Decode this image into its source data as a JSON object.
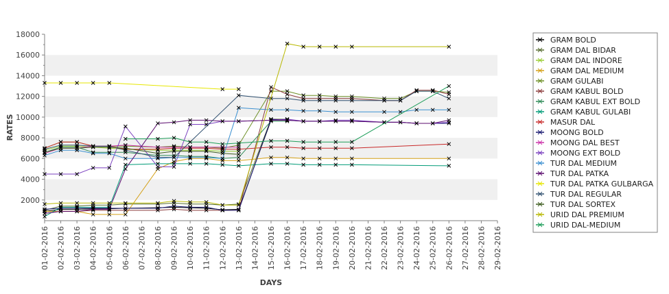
{
  "chart_data": {
    "type": "line",
    "xlabel": "DAYS",
    "ylabel": "RATES",
    "ylim": [
      0,
      18000
    ],
    "yticks": [
      2000,
      4000,
      6000,
      8000,
      10000,
      12000,
      14000,
      16000,
      18000
    ],
    "grid": "horizontal bands",
    "legend_position": "right",
    "x": [
      "01-02-2016",
      "02-02-2016",
      "03-02-2016",
      "04-02-2016",
      "05-02-2016",
      "06-02-2016",
      "07-02-2016",
      "08-02-2016",
      "09-02-2016",
      "10-02-2016",
      "11-02-2016",
      "12-02-2016",
      "13-02-2016",
      "14-02-2016",
      "15-02-2016",
      "16-02-2016",
      "17-02-2016",
      "18-02-2016",
      "19-02-2016",
      "20-02-2016",
      "21-02-2016",
      "22-02-2016",
      "23-02-2016",
      "24-02-2016",
      "25-02-2016",
      "26-02-2016",
      "27-02-2016",
      "28-02-2016",
      "29-02-2016"
    ],
    "series": [
      {
        "name": "GRAM BOLD",
        "color": "#000000",
        "values": [
          900,
          1100,
          1100,
          1150,
          1150,
          1200,
          null,
          1250,
          1300,
          1250,
          1200,
          1050,
          1100,
          null,
          9700,
          9700,
          null,
          null,
          null,
          null,
          null,
          null,
          null,
          null,
          null,
          null,
          null,
          null,
          null
        ]
      },
      {
        "name": "GRAM DAL BIDAR",
        "color": "#556b2f",
        "values": [
          1000,
          1400,
          1400,
          1500,
          1500,
          1600,
          null,
          1600,
          1700,
          1600,
          1600,
          1500,
          1600,
          null,
          9800,
          9800,
          null,
          null,
          null,
          null,
          null,
          null,
          null,
          null,
          null,
          null,
          null,
          null,
          null
        ]
      },
      {
        "name": "GRAM DAL INDORE",
        "color": "#9acd32",
        "values": [
          6800,
          7200,
          7200,
          7100,
          7000,
          6900,
          null,
          6800,
          6800,
          6800,
          6800,
          6700,
          6700,
          null,
          null,
          null,
          null,
          null,
          null,
          null,
          null,
          null,
          null,
          null,
          null,
          null,
          null,
          null,
          null
        ]
      },
      {
        "name": "GRAM DAL MEDIUM",
        "color": "#d4a017",
        "values": [
          900,
          900,
          900,
          600,
          600,
          600,
          null,
          5000,
          5700,
          6000,
          6000,
          5800,
          5800,
          null,
          6100,
          6100,
          6000,
          6000,
          6000,
          6000,
          null,
          null,
          null,
          null,
          null,
          6000,
          null,
          null,
          null
        ]
      },
      {
        "name": "GRAM GULABI",
        "color": "#6b8e23",
        "values": [
          7000,
          7600,
          7600,
          7200,
          7200,
          7200,
          null,
          7100,
          7200,
          7100,
          7100,
          7000,
          7300,
          null,
          12500,
          12500,
          12100,
          12100,
          12000,
          12000,
          null,
          11800,
          11800,
          12500,
          12500,
          12400,
          null,
          null,
          null
        ]
      },
      {
        "name": "GRAM KABUL BOLD",
        "color": "#8b3a3a",
        "values": [
          700,
          900,
          900,
          1000,
          1000,
          1000,
          null,
          1000,
          1100,
          1000,
          1000,
          1000,
          1000,
          null,
          12900,
          12200,
          11800,
          11800,
          11800,
          11800,
          null,
          11600,
          11600,
          12600,
          12600,
          12200,
          null,
          null,
          null
        ]
      },
      {
        "name": "GRAM KABUL EXT BOLD",
        "color": "#2e8b57",
        "values": [
          6600,
          7100,
          7100,
          6600,
          6600,
          6600,
          null,
          6300,
          6300,
          6200,
          6200,
          6000,
          6100,
          null,
          9600,
          9600,
          null,
          null,
          null,
          null,
          null,
          null,
          null,
          null,
          null,
          null,
          null,
          null,
          null
        ]
      },
      {
        "name": "GRAM KABUL GULABI",
        "color": "#009b77",
        "values": [
          400,
          1300,
          1300,
          1300,
          1300,
          5400,
          null,
          5500,
          5500,
          5500,
          5500,
          5400,
          5300,
          null,
          5500,
          5500,
          5400,
          5400,
          5400,
          5400,
          null,
          null,
          null,
          null,
          null,
          5300,
          null,
          null,
          null
        ]
      },
      {
        "name": "MASUR DAL",
        "color": "#c82828",
        "values": [
          7000,
          7600,
          7600,
          7200,
          7200,
          6900,
          null,
          6900,
          7000,
          7000,
          7000,
          6900,
          6900,
          null,
          7100,
          7100,
          7000,
          7000,
          7000,
          7000,
          null,
          null,
          null,
          null,
          null,
          7400,
          null,
          null,
          null
        ]
      },
      {
        "name": "MOONG BOLD",
        "color": "#191970",
        "values": [
          1100,
          1200,
          1200,
          1200,
          1200,
          1200,
          null,
          1200,
          1400,
          1300,
          1300,
          1000,
          1000,
          null,
          9800,
          9700,
          9600,
          9600,
          9600,
          9600,
          null,
          9500,
          9500,
          9400,
          9400,
          9400,
          null,
          null,
          null
        ]
      },
      {
        "name": "MOONG DAL BEST",
        "color": "#cc33aa",
        "values": [
          6500,
          7000,
          7000,
          7200,
          7200,
          7300,
          null,
          7100,
          7100,
          7100,
          7100,
          7100,
          7100,
          null,
          null,
          null,
          null,
          null,
          null,
          null,
          null,
          null,
          null,
          null,
          null,
          null,
          null,
          null,
          null
        ]
      },
      {
        "name": "MOONG EXT BOLD",
        "color": "#7a3fbf",
        "values": [
          4500,
          4500,
          4500,
          5100,
          5100,
          9100,
          null,
          5200,
          5200,
          9300,
          9300,
          9600,
          9600,
          null,
          9700,
          9800,
          9600,
          9600,
          9700,
          9700,
          null,
          9500,
          9500,
          9400,
          9400,
          9500,
          null,
          null,
          null
        ]
      },
      {
        "name": "TUR DAL MEDIUM",
        "color": "#3a8fd0",
        "values": [
          6300,
          6800,
          6800,
          6500,
          6500,
          6000,
          null,
          6000,
          6100,
          6100,
          6100,
          6000,
          10900,
          null,
          10700,
          10700,
          10600,
          10600,
          10500,
          10500,
          null,
          10500,
          10500,
          10700,
          10700,
          10700,
          null,
          null,
          null
        ]
      },
      {
        "name": "TUR DAL PATKA",
        "color": "#5a0a6e",
        "values": [
          700,
          900,
          900,
          1100,
          1100,
          5000,
          null,
          9400,
          9500,
          9700,
          9700,
          9600,
          9600,
          null,
          9700,
          9700,
          9600,
          9600,
          9600,
          9600,
          null,
          9500,
          9500,
          9400,
          9400,
          9700,
          null,
          null,
          null
        ]
      },
      {
        "name": "TUR DAL PATKA GULBARGA",
        "color": "#e6e600",
        "values": [
          13300,
          13300,
          13300,
          13300,
          13300,
          null,
          null,
          null,
          null,
          null,
          null,
          12700,
          12700,
          null,
          null,
          null,
          null,
          null,
          null,
          null,
          null,
          null,
          null,
          null,
          null,
          null,
          null,
          null,
          null
        ]
      },
      {
        "name": "TUR DAL REGULAR",
        "color": "#2f4f6f",
        "values": [
          6900,
          7300,
          7300,
          7200,
          7200,
          6800,
          null,
          6100,
          6100,
          null,
          null,
          null,
          12100,
          null,
          11800,
          11800,
          11600,
          11600,
          11600,
          11600,
          null,
          11600,
          11600,
          12500,
          12500,
          11800,
          null,
          null,
          null
        ]
      },
      {
        "name": "TUR DAL SORTEX",
        "color": "#3d5c1f",
        "values": [
          6600,
          7000,
          7000,
          7100,
          7100,
          7000,
          null,
          6500,
          6700,
          6700,
          6700,
          6500,
          6400,
          null,
          null,
          null,
          null,
          null,
          null,
          null,
          null,
          null,
          null,
          null,
          null,
          null,
          null,
          null,
          null
        ]
      },
      {
        "name": "URID DAL PREMIUM",
        "color": "#b8b800",
        "values": [
          1600,
          1700,
          1700,
          1700,
          1700,
          1700,
          null,
          1700,
          1900,
          1800,
          1800,
          1500,
          1500,
          null,
          null,
          17100,
          16800,
          16800,
          16800,
          16800,
          null,
          null,
          null,
          null,
          null,
          16800,
          null,
          null,
          null
        ]
      },
      {
        "name": "URID DAL-MEDIUM",
        "color": "#1e9e5a",
        "values": [
          null,
          null,
          null,
          null,
          null,
          7900,
          null,
          7900,
          8000,
          7600,
          7600,
          7400,
          7500,
          null,
          7700,
          7700,
          7600,
          7600,
          7600,
          7600,
          null,
          null,
          null,
          null,
          null,
          13000,
          null,
          null,
          null
        ]
      }
    ]
  }
}
